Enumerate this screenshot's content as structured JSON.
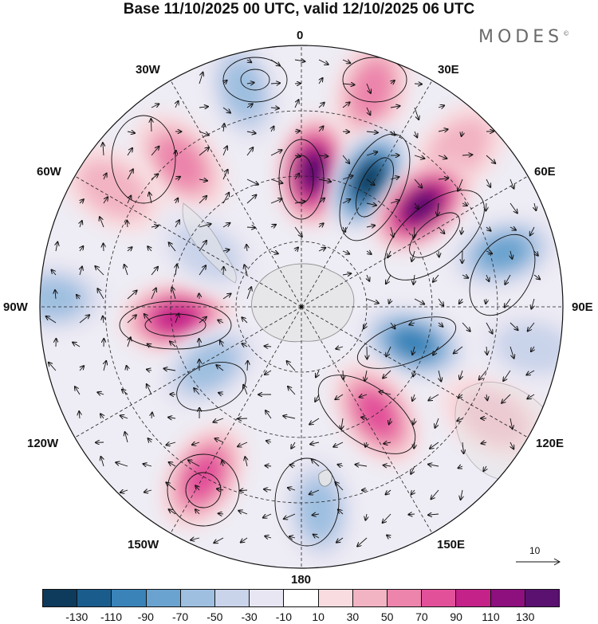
{
  "title": "Base 11/10/2025 00 UTC, valid 12/10/2025 06 UTC",
  "brand": "MODES",
  "brand_mark": "©",
  "meridian_labels": {
    "deg0": "0",
    "w30": "30W",
    "e30": "30E",
    "w60": "60W",
    "e60": "60E",
    "w90": "90W",
    "e90": "90E",
    "w120": "120W",
    "e120": "120E",
    "w150": "150W",
    "e150": "150E",
    "deg180": "180"
  },
  "reference_vector": {
    "label": "10"
  },
  "colorbar": {
    "colors": [
      "#0e3a5c",
      "#1a5d8d",
      "#3a83b8",
      "#6aa3cf",
      "#9fbfe0",
      "#c9d3ea",
      "#e8e6f2",
      "#ffffff",
      "#f9dcdf",
      "#f2b3c2",
      "#ec84ab",
      "#e2509a",
      "#c42189",
      "#8e0f7e",
      "#5a1170"
    ],
    "ticks": [
      "-130",
      "-110",
      "-90",
      "-70",
      "-50",
      "-30",
      "-10",
      "10",
      "30",
      "50",
      "70",
      "90",
      "110",
      "130"
    ]
  },
  "anomaly_centers": [
    {
      "lon": -15,
      "dist": 0.86,
      "value": -45
    },
    {
      "lon": 18,
      "dist": 0.87,
      "value": 35
    },
    {
      "lon": 45,
      "dist": 0.85,
      "value": 15
    },
    {
      "lon": -40,
      "dist": 0.72,
      "value": 35
    },
    {
      "lon": -58,
      "dist": 0.85,
      "value": 30
    },
    {
      "lon": 5,
      "dist": 0.52,
      "value": 120
    },
    {
      "lon": 28,
      "dist": 0.55,
      "value": -130
    },
    {
      "lon": 50,
      "dist": 0.6,
      "value": 125
    },
    {
      "lon": 75,
      "dist": 0.8,
      "value": -70
    },
    {
      "lon": 108,
      "dist": 0.45,
      "value": -80
    },
    {
      "lon": 120,
      "dist": 0.85,
      "value": 25
    },
    {
      "lon": -95,
      "dist": 0.48,
      "value": 80
    },
    {
      "lon": -88,
      "dist": 0.95,
      "value": -35
    },
    {
      "lon": -60,
      "dist": 0.42,
      "value": -30
    },
    {
      "lon": -123,
      "dist": 0.42,
      "value": -40
    },
    {
      "lon": 145,
      "dist": 0.5,
      "value": 60
    },
    {
      "lon": -150,
      "dist": 0.75,
      "value": 65
    },
    {
      "lon": 175,
      "dist": 0.78,
      "value": -45
    },
    {
      "lon": 100,
      "dist": 0.9,
      "value": -20
    }
  ]
}
